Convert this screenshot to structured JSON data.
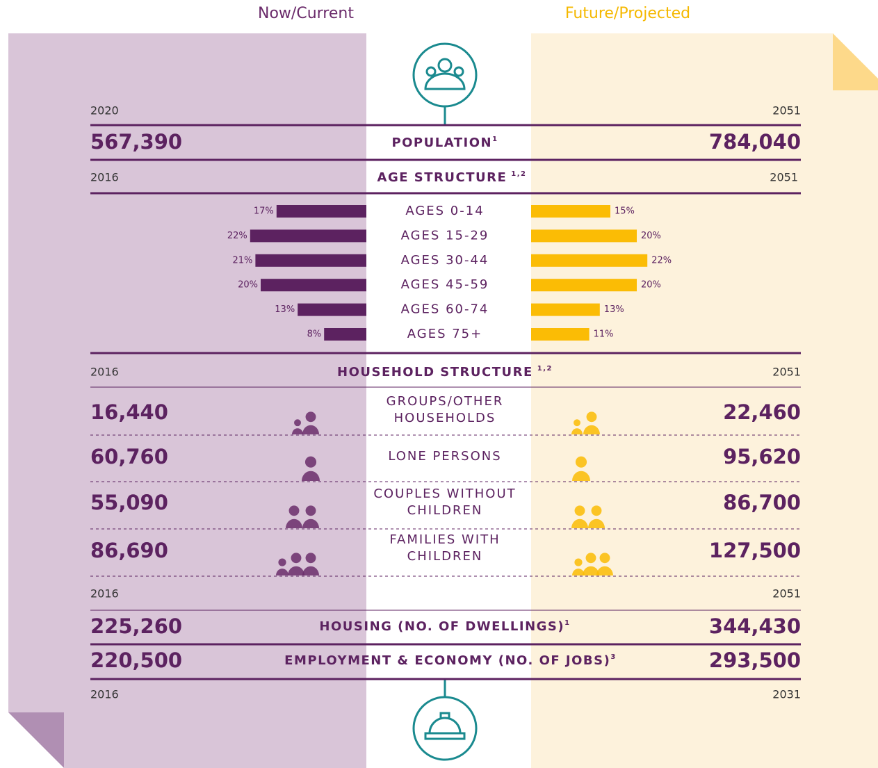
{
  "header": {
    "current": "Now/Current",
    "future": "Future/Projected"
  },
  "population": {
    "label": "POPULATION",
    "note": "1",
    "current_year": "2020",
    "future_year": "2051",
    "current": "567,390",
    "future": "784,040"
  },
  "age_structure": {
    "label": "AGE STRUCTURE",
    "note": "1,2",
    "current_year": "2016",
    "future_year": "2051",
    "rows": [
      {
        "label": "AGES 0-14",
        "current": 17,
        "current_label": "17%",
        "future": 15,
        "future_label": "15%"
      },
      {
        "label": "AGES 15-29",
        "current": 22,
        "current_label": "22%",
        "future": 20,
        "future_label": "20%"
      },
      {
        "label": "AGES 30-44",
        "current": 21,
        "current_label": "21%",
        "future": 22,
        "future_label": "22%"
      },
      {
        "label": "AGES 45-59",
        "current": 20,
        "current_label": "20%",
        "future": 20,
        "future_label": "20%"
      },
      {
        "label": "AGES 60-74",
        "current": 13,
        "current_label": "13%",
        "future": 13,
        "future_label": "13%"
      },
      {
        "label": "AGES 75+",
        "current": 8,
        "current_label": "8%",
        "future": 11,
        "future_label": "11%"
      }
    ]
  },
  "household_structure": {
    "label": "HOUSEHOLD STRUCTURE",
    "note": "1,2",
    "current_year": "2016",
    "future_year": "2051",
    "rows": [
      {
        "label": [
          "GROUPS/OTHER",
          "HOUSEHOLDS"
        ],
        "current": "16,440",
        "future": "22,460"
      },
      {
        "label": [
          "LONE PERSONS"
        ],
        "current": "60,760",
        "future": "95,620"
      },
      {
        "label": [
          "COUPLES WITHOUT",
          "CHILDREN"
        ],
        "current": "55,090",
        "future": "86,700"
      },
      {
        "label": [
          "FAMILIES WITH",
          "CHILDREN"
        ],
        "current": "86,690",
        "future": "127,500"
      }
    ]
  },
  "housing": {
    "label": "HOUSING (NO. OF DWELLINGS)",
    "note": "1",
    "current_year": "2016",
    "future_year": "2051",
    "current": "225,260",
    "future": "344,430"
  },
  "employment": {
    "label": "EMPLOYMENT & ECONOMY (NO. OF JOBS)",
    "note": "3",
    "current_year": "2016",
    "future_year": "2031",
    "current": "220,500",
    "future": "293,500"
  }
}
